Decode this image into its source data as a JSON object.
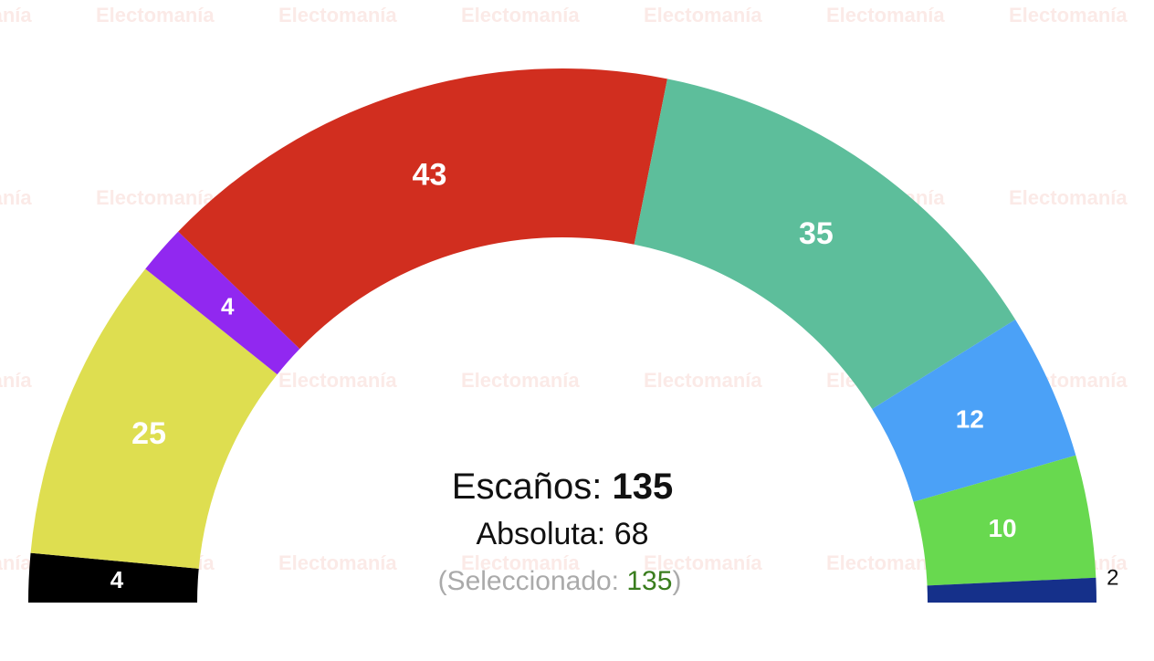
{
  "chart_data": {
    "type": "hemicycle",
    "values": [
      4,
      25,
      4,
      43,
      35,
      12,
      10,
      2
    ],
    "colors": [
      "#000000",
      "#dede50",
      "#9128f0",
      "#d12e1f",
      "#5dbe9b",
      "#4ba1f7",
      "#68d94f",
      "#15308a"
    ],
    "watermark": "Electomanía",
    "seats_label": "Escaños:",
    "total": 135,
    "majority_label": "Absoluta:",
    "majority": 68,
    "selected_label": "(Seleccionado:",
    "selected": 135,
    "selected_close": ")"
  }
}
